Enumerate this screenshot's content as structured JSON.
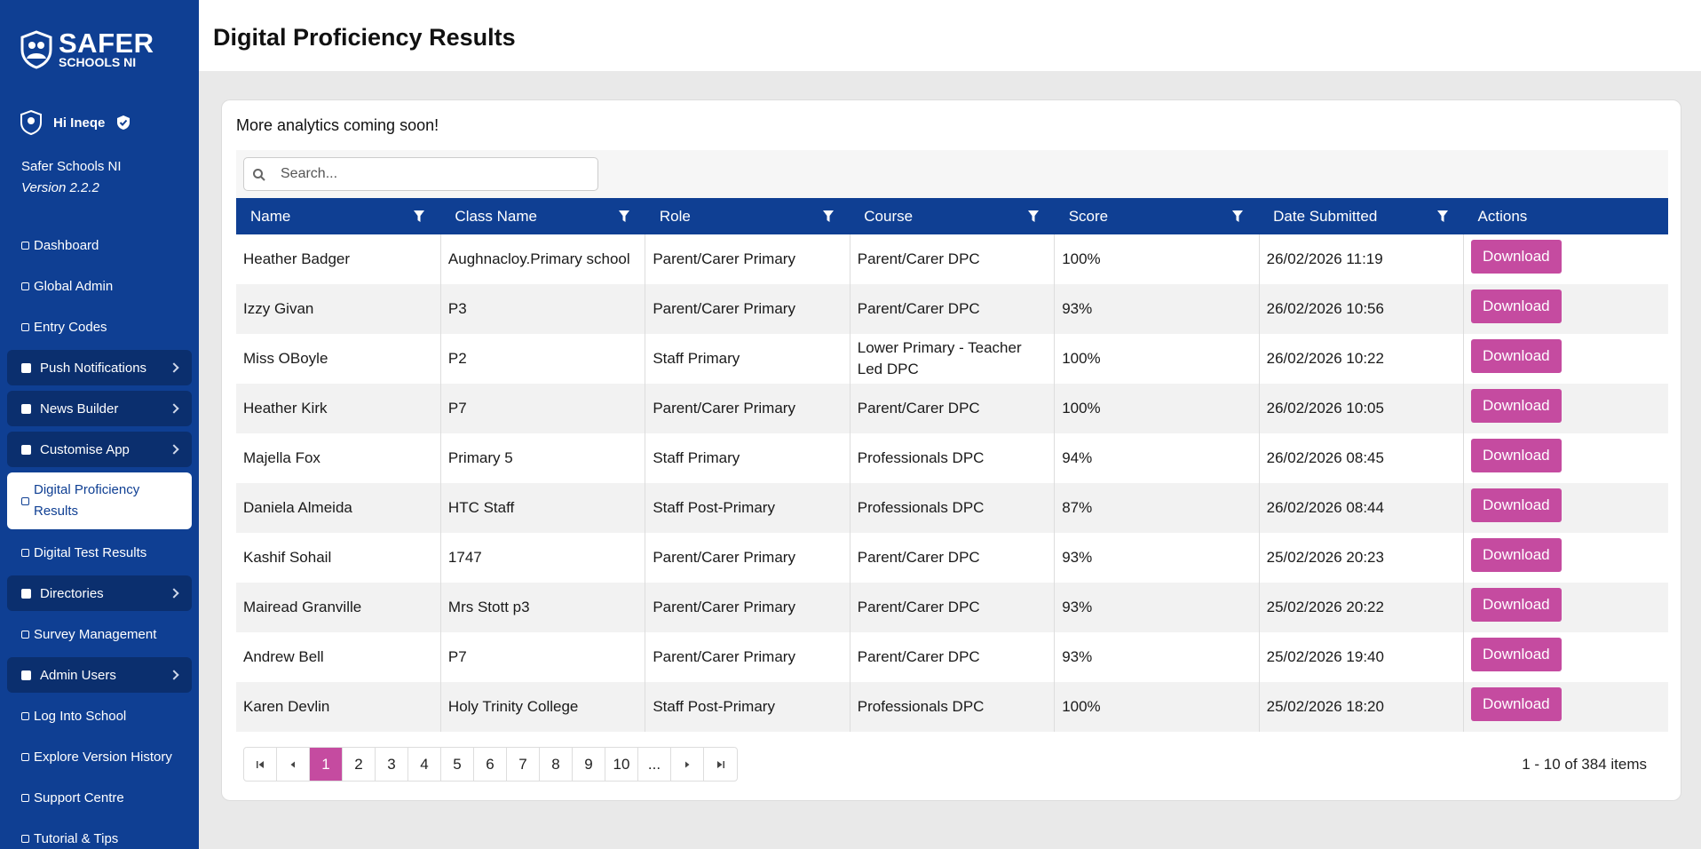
{
  "logo": {
    "line1": "SAFER",
    "line2": "SCHOOLS NI"
  },
  "user": {
    "greeting": "Hi Ineqe",
    "org": "Safer Schools NI",
    "version": "Version 2.2.2"
  },
  "nav": [
    {
      "label": "Dashboard",
      "group": false,
      "active": false
    },
    {
      "label": "Global Admin",
      "group": false,
      "active": false
    },
    {
      "label": "Entry Codes",
      "group": false,
      "active": false
    },
    {
      "label": "Push Notifications",
      "group": true,
      "active": false
    },
    {
      "label": "News Builder",
      "group": true,
      "active": false
    },
    {
      "label": "Customise App",
      "group": true,
      "active": false
    },
    {
      "label": "Digital Proficiency Results",
      "group": false,
      "active": true
    },
    {
      "label": "Digital Test Results",
      "group": false,
      "active": false
    },
    {
      "label": "Directories",
      "group": true,
      "active": false
    },
    {
      "label": "Survey Management",
      "group": false,
      "active": false
    },
    {
      "label": "Admin Users",
      "group": true,
      "active": false
    },
    {
      "label": "Log Into School",
      "group": false,
      "active": false
    },
    {
      "label": "Explore Version History",
      "group": false,
      "active": false
    },
    {
      "label": "Support Centre",
      "group": false,
      "active": false
    },
    {
      "label": "Tutorial & Tips",
      "group": false,
      "active": false
    }
  ],
  "header": {
    "title": "Digital Proficiency Results"
  },
  "card": {
    "notice": "More analytics coming soon!",
    "search_placeholder": "Search..."
  },
  "table": {
    "columns": [
      {
        "label": "Name",
        "filter": true
      },
      {
        "label": "Class Name",
        "filter": true
      },
      {
        "label": "Role",
        "filter": true
      },
      {
        "label": "Course",
        "filter": true
      },
      {
        "label": "Score",
        "filter": true
      },
      {
        "label": "Date Submitted",
        "filter": true
      },
      {
        "label": "Actions",
        "filter": false
      }
    ],
    "action_label": "Download",
    "rows": [
      [
        "Heather Badger",
        "Aughnacloy.Primary school",
        "Parent/Carer Primary",
        "Parent/Carer DPC",
        "100%",
        "26/02/2026 11:19"
      ],
      [
        "Izzy Givan",
        "P3",
        "Parent/Carer Primary",
        "Parent/Carer DPC",
        "93%",
        "26/02/2026 10:56"
      ],
      [
        "Miss OBoyle",
        "P2",
        "Staff Primary",
        "Lower Primary - Teacher Led DPC",
        "100%",
        "26/02/2026 10:22"
      ],
      [
        "Heather Kirk",
        "P7",
        "Parent/Carer Primary",
        "Parent/Carer DPC",
        "100%",
        "26/02/2026 10:05"
      ],
      [
        "Majella Fox",
        "Primary 5",
        "Staff Primary",
        "Professionals DPC",
        "94%",
        "26/02/2026 08:45"
      ],
      [
        "Daniela Almeida",
        "HTC Staff",
        "Staff Post-Primary",
        "Professionals DPC",
        "87%",
        "26/02/2026 08:44"
      ],
      [
        "Kashif Sohail",
        "1747",
        "Parent/Carer Primary",
        "Parent/Carer DPC",
        "93%",
        "25/02/2026 20:23"
      ],
      [
        "Mairead Granville",
        "Mrs Stott p3",
        "Parent/Carer Primary",
        "Parent/Carer DPC",
        "93%",
        "25/02/2026 20:22"
      ],
      [
        "Andrew Bell",
        "P7",
        "Parent/Carer Primary",
        "Parent/Carer DPC",
        "93%",
        "25/02/2026 19:40"
      ],
      [
        "Karen Devlin",
        "Holy Trinity College",
        "Staff Post-Primary",
        "Professionals DPC",
        "100%",
        "25/02/2026 18:20"
      ]
    ]
  },
  "pagination": {
    "pages": [
      1,
      2,
      3,
      4,
      5,
      6,
      7,
      8,
      9,
      10
    ],
    "more": "...",
    "current": 1,
    "summary": "1 - 10 of 384 items"
  }
}
